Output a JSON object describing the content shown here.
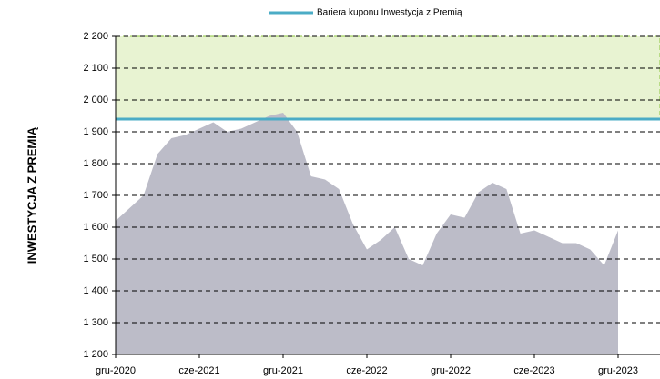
{
  "chart_data": {
    "type": "area",
    "y_axis_label": "INWESTYCJA Z PREMIĄ",
    "x": [
      "2020-12",
      "2021-01",
      "2021-02",
      "2021-03",
      "2021-04",
      "2021-05",
      "2021-06",
      "2021-07",
      "2021-08",
      "2021-09",
      "2021-10",
      "2021-11",
      "2021-12",
      "2022-01",
      "2022-02",
      "2022-03",
      "2022-04",
      "2022-05",
      "2022-06",
      "2022-07",
      "2022-08",
      "2022-09",
      "2022-10",
      "2022-11",
      "2022-12",
      "2023-01",
      "2023-02",
      "2023-03",
      "2023-04",
      "2023-05",
      "2023-06",
      "2023-07",
      "2023-08",
      "2023-09",
      "2023-10",
      "2023-11",
      "2023-12"
    ],
    "series": [
      {
        "color": "#bcbcc8",
        "values": [
          1620,
          1660,
          1700,
          1830,
          1880,
          1890,
          1910,
          1930,
          1900,
          1910,
          1930,
          1950,
          1960,
          1900,
          1760,
          1750,
          1720,
          1610,
          1530,
          1560,
          1600,
          1500,
          1480,
          1580,
          1640,
          1630,
          1710,
          1740,
          1720,
          1580,
          1590,
          1570,
          1550,
          1550,
          1530,
          1480,
          1590
        ]
      }
    ],
    "barrier": {
      "name": "Bariera kuponu Inwestycja z Premią",
      "color": "#4bacc6",
      "value": 1940,
      "zone_color": "#e8f3d2"
    },
    "xlim": [
      "2020-12",
      "2024-03"
    ],
    "xticks": [
      {
        "value": "2020-12",
        "label": "gru-2020"
      },
      {
        "value": "2021-06",
        "label": "cze-2021"
      },
      {
        "value": "2021-12",
        "label": "gru-2021"
      },
      {
        "value": "2022-06",
        "label": "cze-2022"
      },
      {
        "value": "2022-12",
        "label": "gru-2022"
      },
      {
        "value": "2023-06",
        "label": "cze-2023"
      },
      {
        "value": "2023-12",
        "label": "gru-2023"
      }
    ],
    "ylim": [
      1200,
      2200
    ],
    "yticks": [
      {
        "value": 1200,
        "label": "1 200"
      },
      {
        "value": 1300,
        "label": "1 300"
      },
      {
        "value": 1400,
        "label": "1 400"
      },
      {
        "value": 1500,
        "label": "1 500"
      },
      {
        "value": 1600,
        "label": "1 600"
      },
      {
        "value": 1700,
        "label": "1 700"
      },
      {
        "value": 1800,
        "label": "1 800"
      },
      {
        "value": 1900,
        "label": "1 900"
      },
      {
        "value": 2000,
        "label": "2 000"
      },
      {
        "value": 2100,
        "label": "2 100"
      },
      {
        "value": 2200,
        "label": "2 200"
      }
    ],
    "grid": true,
    "legend": "top"
  }
}
